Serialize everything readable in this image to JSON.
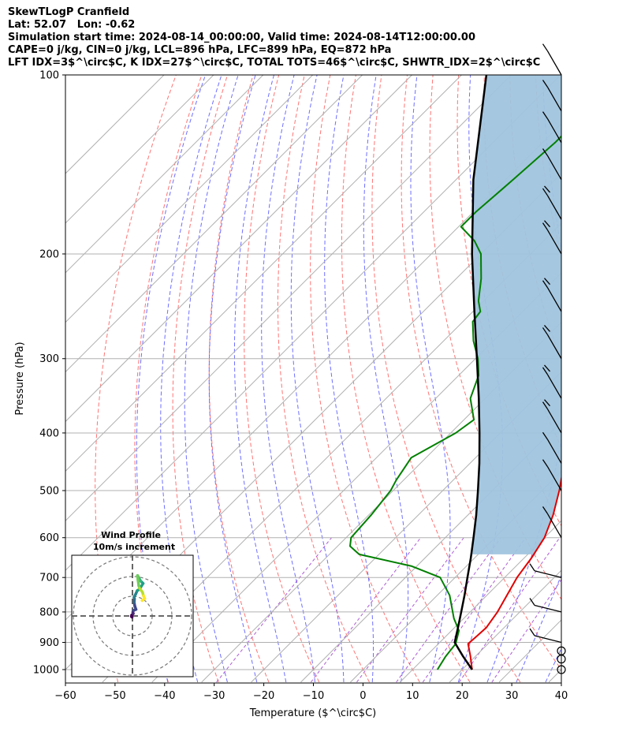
{
  "header": {
    "line1": "SkewTLogP Cranfield",
    "line2": "Lat: 52.07   Lon: -0.62",
    "line3": "Simulation start time: 2024-08-14_00:00:00, Valid time: 2024-08-14T12:00:00.00",
    "line4": "CAPE=0 j/kg, CIN=0 j/kg, LCL=896 hPa, LFC=899 hPa, EQ=872 hPa",
    "line5": "LFT IDX=3$^\\circ$C, K IDX=27$^\\circ$C, TOTAL TOTS=46$^\\circ$C, SHWTR_IDX=2$^\\circ$C"
  },
  "chart_data": {
    "type": "line",
    "xlabel": "Temperature ($^\\circ$C)",
    "ylabel": "Pressure (hPa)",
    "xlim": [
      -60,
      40
    ],
    "ylim_hpa": [
      1050,
      100
    ],
    "y_scale": "log",
    "skew": 45,
    "x_ticks": [
      -60,
      -50,
      -40,
      -30,
      -20,
      -10,
      0,
      10,
      20,
      30,
      40
    ],
    "y_ticks": [
      1000,
      900,
      800,
      700,
      600,
      500,
      400,
      300,
      200,
      100
    ],
    "grid": true,
    "series": [
      {
        "name": "Temperature",
        "color": "#e00000",
        "p": [
          1000,
          950,
          905,
          880,
          850,
          800,
          700,
          650,
          600,
          550,
          500,
          450,
          400,
          370,
          340,
          310,
          280,
          250,
          220,
          200,
          180,
          165,
          150,
          140,
          130,
          120,
          110,
          100
        ],
        "t": [
          22,
          19,
          16,
          16.2,
          16.4,
          15.5,
          12.5,
          11.5,
          10,
          7.2,
          3.5,
          -1,
          -5.5,
          -8,
          -10.5,
          -14,
          -17.5,
          -22,
          -27.5,
          -31.5,
          -35.5,
          -39.5,
          -44.5,
          -48.5,
          -52,
          -56.5,
          -61.5,
          -67
        ]
      },
      {
        "name": "Dewpoint",
        "color": "#008000",
        "p": [
          1000,
          950,
          905,
          860,
          820,
          750,
          700,
          670,
          640,
          620,
          600,
          550,
          500,
          480,
          440,
          400,
          380,
          350,
          320,
          300,
          280,
          260,
          250,
          240,
          220,
          200,
          190,
          180,
          170,
          150,
          130,
          115,
          100
        ],
        "t": [
          15,
          14,
          13.5,
          11.5,
          8,
          2.5,
          -3,
          -11,
          -24,
          -27.5,
          -29,
          -29.5,
          -30.5,
          -31.5,
          -33,
          -29,
          -28,
          -33,
          -36,
          -39.5,
          -44,
          -48,
          -48.5,
          -51,
          -55,
          -60,
          -64,
          -69.5,
          -69.5,
          -68.5,
          -67.5,
          -67.5,
          -68
        ]
      },
      {
        "name": "Parcel",
        "color": "#000000",
        "p": [
          1000,
          950,
          900,
          850,
          800,
          750,
          700,
          650,
          600,
          550,
          500,
          450,
          400,
          350,
          300,
          250,
          200,
          150,
          100
        ],
        "t": [
          22,
          17.5,
          13,
          10.7,
          8.2,
          5.5,
          2.5,
          -0.7,
          -4.3,
          -8.3,
          -12.9,
          -18.1,
          -24.2,
          -31.3,
          -39.7,
          -49.7,
          -61.8,
          -76.5,
          -95
        ]
      }
    ],
    "shaded_region": "between parcel and temperature, 600 hPa to 100 hPa",
    "shade_color": "#a0c4de",
    "wind_barb_pressures": [
      1000,
      960,
      930,
      900,
      800,
      700,
      600,
      500,
      450,
      400,
      350,
      300,
      250,
      200,
      175,
      150,
      130,
      115,
      100
    ],
    "background_lines": [
      "dry adiabats (red dashed)",
      "moist adiabats (blue dashed)",
      "mixing ratio (purple dashed)",
      "skewed isotherms (gray)"
    ]
  },
  "hodograph": {
    "title": "Wind Profile",
    "subtitle": "10m/s increment",
    "rings": 3,
    "axes_crosshair": true,
    "u": [
      -0.2,
      -0.5,
      -0.4,
      0.4,
      0.2,
      0.5,
      1.8,
      1.2,
      0.9,
      1.0,
      0.8,
      1.6,
      2.4,
      3.6,
      5.4,
      4.2,
      3.2,
      2.6,
      2.8,
      3.2,
      3.6,
      5.1,
      5.6,
      6.2,
      4.9
    ],
    "v": [
      -0.6,
      -0.3,
      0.4,
      1.2,
      1.9,
      2.8,
      3.3,
      5.0,
      6.8,
      8.7,
      9.5,
      11.0,
      12.8,
      13.6,
      16.5,
      17.7,
      19.4,
      20.5,
      18.3,
      15.4,
      14.1,
      12.0,
      10.2,
      8.8,
      7.8
    ]
  }
}
